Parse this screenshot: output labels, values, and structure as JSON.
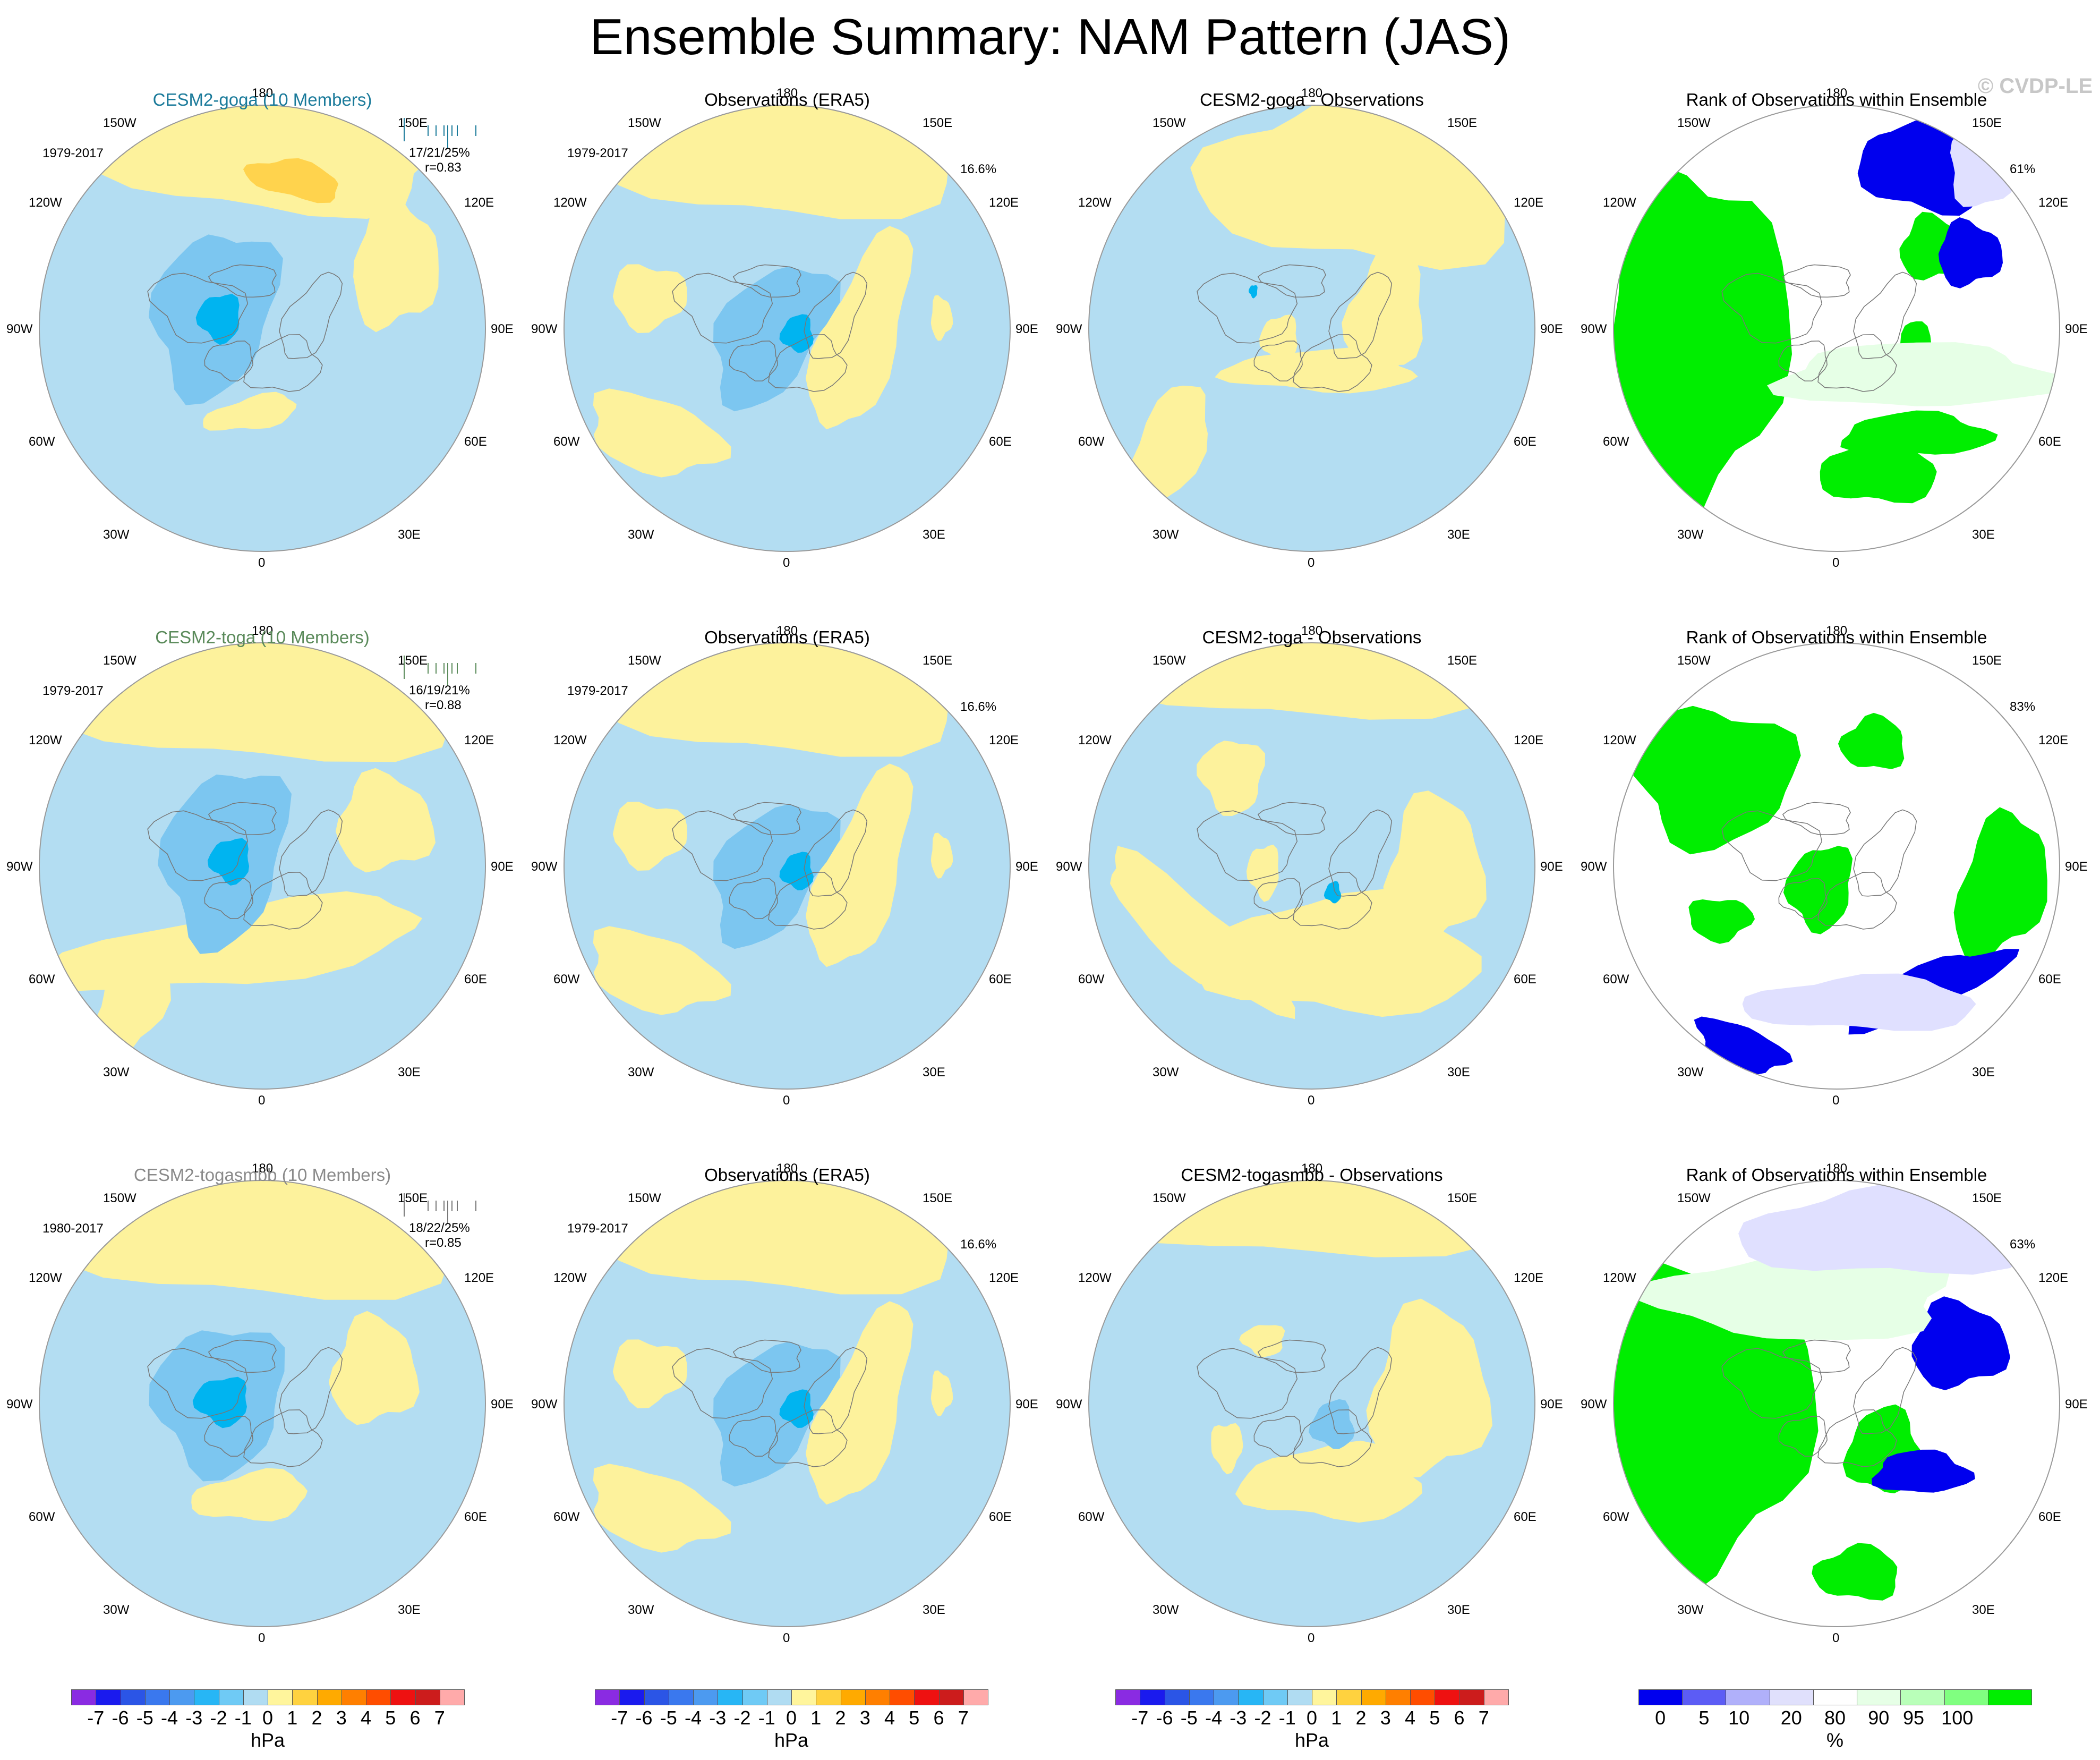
{
  "title": "Ensemble Summary: NAM Pattern (JAS)",
  "watermark": "© CVDP-LE",
  "rows": [
    {
      "model": {
        "title": "CESM2-goga (10 Members)",
        "title_color": "#1a7a9a",
        "years": "1979-2017",
        "stat_line1": "17/21/25%",
        "stat_line2": "r=0.83",
        "spark_color": "#1a7a9a"
      },
      "obs": {
        "title": "Observations (ERA5)",
        "years": "1979-2017",
        "pct": "16.6%"
      },
      "diff": {
        "title": "CESM2-goga - Observations"
      },
      "rank": {
        "title": "Rank of Observations within Ensemble",
        "pct": "61%"
      }
    },
    {
      "model": {
        "title": "CESM2-toga (10 Members)",
        "title_color": "#5a8a5a",
        "years": "1979-2017",
        "stat_line1": "16/19/21%",
        "stat_line2": "r=0.88",
        "spark_color": "#5a8a5a"
      },
      "obs": {
        "title": "Observations (ERA5)",
        "years": "1979-2017",
        "pct": "16.6%"
      },
      "diff": {
        "title": "CESM2-toga - Observations"
      },
      "rank": {
        "title": "Rank of Observations within Ensemble",
        "pct": "83%"
      }
    },
    {
      "model": {
        "title": "CESM2-togasmbb (10 Members)",
        "title_color": "#8a8a8a",
        "years": "1980-2017",
        "stat_line1": "18/22/25%",
        "stat_line2": "r=0.85",
        "spark_color": "#777777"
      },
      "obs": {
        "title": "Observations (ERA5)",
        "years": "1979-2017",
        "pct": "16.6%"
      },
      "diff": {
        "title": "CESM2-togasmbb - Observations"
      },
      "rank": {
        "title": "Rank of Observations within Ensemble",
        "pct": "63%"
      }
    }
  ],
  "map_labels": {
    "top": "180",
    "bottom": "0",
    "left": "90W",
    "right": "90E",
    "upper_left_1": "150W",
    "upper_left_2": "120W",
    "upper_right_1": "150E",
    "upper_right_2": "120E",
    "lower_left_1": "60W",
    "lower_left_2": "30W",
    "lower_right_1": "60E",
    "lower_right_2": "30E"
  },
  "colors": {
    "positive_light": "#fdf29c",
    "positive_mid": "#ffd34d",
    "negative_light": "#b3ddf2",
    "negative_mid": "#7cc6f0",
    "negative_strong": "#00b4f0",
    "rank_low": "#0000ee",
    "rank_lowmid": "#e0e0ff",
    "rank_high": "#00ee00",
    "rank_highmid": "#e6ffe6",
    "coast": "#777777",
    "rim": "#9a9a9a"
  },
  "colorbar_hpa": {
    "unit": "hPa",
    "labels": [
      "-7",
      "-6",
      "-5",
      "-4",
      "-3",
      "-2",
      "-1",
      "0",
      "1",
      "2",
      "3",
      "4",
      "5",
      "6",
      "7"
    ],
    "colors": [
      "#8a2be2",
      "#1a1aee",
      "#2b55e6",
      "#3a78ee",
      "#4c9af0",
      "#27b6f5",
      "#6fcaf5",
      "#b0dcf2",
      "#fff59c",
      "#ffd23f",
      "#ffaa00",
      "#ff7f00",
      "#ff4d00",
      "#ee1111",
      "#cc1c1c",
      "#ffaaaa"
    ]
  },
  "colorbar_rank": {
    "unit": "%",
    "labels": [
      "0",
      "5",
      "10",
      "20",
      "80",
      "90",
      "95",
      "100"
    ],
    "colors": [
      "#0000ee",
      "#5c5cf5",
      "#b0b0fa",
      "#e0e0fc",
      "#ffffff",
      "#e6ffe6",
      "#b9ffb9",
      "#80ff80",
      "#00ee00"
    ]
  }
}
